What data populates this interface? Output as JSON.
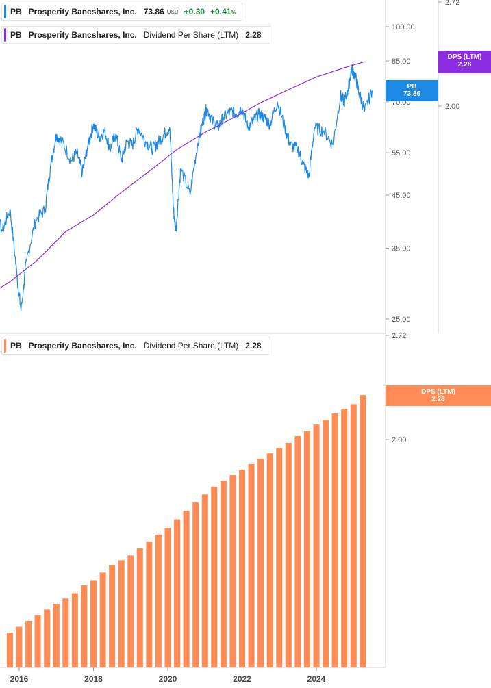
{
  "legends": {
    "price": {
      "ticker": "PB",
      "name": "Prosperity Bancshares, Inc.",
      "last": "73.86",
      "currency": "USD",
      "change": "+0.30",
      "change_pct": "+0.41",
      "pct_symbol": "%",
      "color": "#1e88e5"
    },
    "dps_top": {
      "ticker": "PB",
      "name": "Prosperity Bancshares, Inc.",
      "metric": "Dividend Per Share (LTM)",
      "value": "2.28",
      "color": "#8b2be2"
    },
    "dps_bottom": {
      "ticker": "PB",
      "name": "Prosperity Bancshares, Inc.",
      "metric": "Dividend Per Share (LTM)",
      "value": "2.28",
      "color": "#ff8c55"
    }
  },
  "tags": {
    "price": {
      "line1": "PB",
      "line2": "73.86",
      "color": "#1e88e5"
    },
    "dps_top": {
      "line1": "DPS (LTM)",
      "line2": "2.28",
      "color": "#8b2be2"
    },
    "dps_bottom": {
      "line1": "DPS (LTM)",
      "line2": "2.28",
      "color": "#ff8c55"
    }
  },
  "chart_data": [
    {
      "type": "line",
      "scale": "log",
      "price_axis_ticks": [
        "100.00",
        "85.00",
        "70.00",
        "55.00",
        "45.00",
        "35.00",
        "25.00"
      ],
      "dps_axis_ticks": [
        "2.72",
        "2.00"
      ],
      "series": [
        {
          "name": "Prosperity Bancshares, Inc.",
          "unit": "USD",
          "color": "#1e88e5",
          "x": [
            2015.0,
            2015.3,
            2015.55,
            2015.75,
            2015.95,
            2016.05,
            2016.2,
            2016.45,
            2016.7,
            2016.85,
            2017.0,
            2017.15,
            2017.4,
            2017.55,
            2017.7,
            2017.85,
            2018.0,
            2018.15,
            2018.3,
            2018.45,
            2018.6,
            2018.75,
            2018.9,
            2019.05,
            2019.2,
            2019.4,
            2019.6,
            2019.75,
            2019.9,
            2020.05,
            2020.15,
            2020.22,
            2020.35,
            2020.6,
            2020.8,
            2020.95,
            2021.05,
            2021.2,
            2021.35,
            2021.5,
            2021.7,
            2021.85,
            2022.0,
            2022.15,
            2022.3,
            2022.45,
            2022.6,
            2022.75,
            2022.95,
            2023.15,
            2023.3,
            2023.5,
            2023.65,
            2023.8,
            2023.95,
            2024.2,
            2024.45,
            2024.65,
            2024.75,
            2024.85,
            2024.95,
            2025.05,
            2025.15,
            2025.3,
            2025.5
          ],
          "y": [
            45.5,
            42,
            38,
            42,
            30,
            26,
            33,
            40,
            42,
            52,
            60,
            58,
            53,
            55,
            50,
            57,
            63,
            59,
            61,
            56,
            60,
            53,
            58,
            57,
            62,
            58,
            56,
            58,
            60,
            62,
            42,
            38,
            51,
            45,
            57,
            64,
            68,
            64,
            62,
            65,
            67,
            66,
            68,
            62,
            64,
            66,
            65,
            63,
            70,
            62,
            57,
            56,
            52,
            49,
            62,
            61,
            57,
            72,
            70,
            74,
            82,
            79,
            73,
            67,
            73.86
          ]
        },
        {
          "name": "Dividend Per Share (LTM)",
          "color": "#8b2be2",
          "x": [
            2015.0,
            2015.75,
            2016.5,
            2017.25,
            2018.0,
            2018.75,
            2019.5,
            2020.25,
            2021.0,
            2021.75,
            2022.5,
            2023.25,
            2024.0,
            2024.75,
            2025.3
          ],
          "y": [
            1.13,
            1.19,
            1.27,
            1.38,
            1.45,
            1.55,
            1.65,
            1.76,
            1.85,
            1.93,
            2.02,
            2.1,
            2.18,
            2.24,
            2.28
          ]
        }
      ]
    },
    {
      "type": "bar",
      "series": [
        {
          "name": "Dividend Per Share (LTM)",
          "color": "#ff8c55",
          "x": [
            2015.75,
            2016.0,
            2016.25,
            2016.5,
            2016.75,
            2017.0,
            2017.25,
            2017.5,
            2017.75,
            2018.0,
            2018.25,
            2018.5,
            2018.75,
            2019.0,
            2019.25,
            2019.5,
            2019.75,
            2020.0,
            2020.25,
            2020.5,
            2020.75,
            2021.0,
            2021.25,
            2021.5,
            2021.75,
            2022.0,
            2022.25,
            2022.5,
            2022.75,
            2023.0,
            2023.25,
            2023.5,
            2023.75,
            2024.0,
            2024.25,
            2024.5,
            2024.75,
            2025.0,
            2025.25
          ],
          "values": [
            1.13,
            1.15,
            1.17,
            1.19,
            1.21,
            1.23,
            1.25,
            1.27,
            1.3,
            1.32,
            1.35,
            1.38,
            1.4,
            1.42,
            1.45,
            1.48,
            1.51,
            1.54,
            1.58,
            1.62,
            1.66,
            1.7,
            1.74,
            1.77,
            1.8,
            1.83,
            1.86,
            1.89,
            1.92,
            1.95,
            1.98,
            2.02,
            2.05,
            2.09,
            2.12,
            2.16,
            2.19,
            2.22,
            2.28
          ]
        }
      ],
      "axis_ticks": [
        "2.72",
        "2.00"
      ],
      "ylim": [
        1.08,
        2.72
      ]
    }
  ],
  "x_axis_labels": [
    "2016",
    "2018",
    "2020",
    "2022",
    "2024"
  ],
  "x_axis_years": [
    2016,
    2018,
    2020,
    2022,
    2024
  ]
}
